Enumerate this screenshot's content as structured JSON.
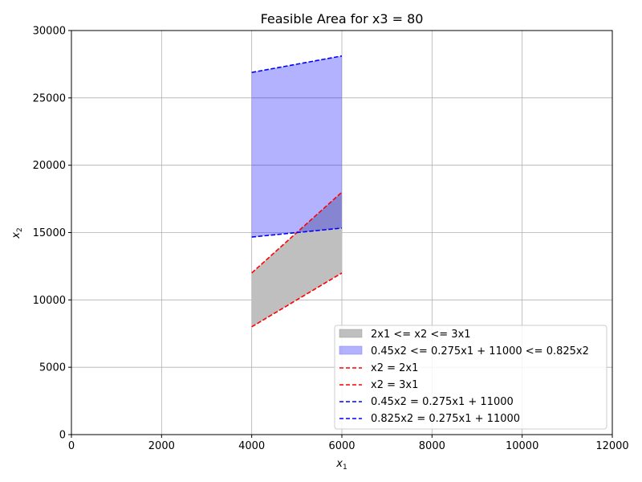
{
  "chart_data": {
    "type": "area",
    "title": "Feasible Area for x3 = 80",
    "xlabel_main": "x",
    "xlabel_sub": "1",
    "ylabel_main": "x",
    "ylabel_sub": "2",
    "xlim": [
      0,
      12000
    ],
    "ylim": [
      0,
      30000
    ],
    "xticks": [
      0,
      2000,
      4000,
      6000,
      8000,
      10000,
      12000
    ],
    "yticks": [
      0,
      5000,
      10000,
      15000,
      20000,
      25000,
      30000
    ],
    "grid": true,
    "legend_position": "lower-right",
    "fills": [
      {
        "name": "2x1 <= x2 <= 3x1",
        "color": "#bfbfbf",
        "opacity": 1,
        "x": [
          4000,
          6000
        ],
        "lower": [
          8000,
          12000
        ],
        "upper": [
          12000,
          18000
        ]
      },
      {
        "name": "0.45x2 <= 0.275x1 + 11000 <= 0.825x2",
        "color": "#0000ff",
        "opacity": 0.3,
        "x": [
          4000,
          6000
        ],
        "lower": [
          14667,
          15333
        ],
        "upper": [
          26889,
          28111
        ]
      }
    ],
    "lines": [
      {
        "name": "x2 = 2x1",
        "color": "#ff0000",
        "dash": true,
        "x": [
          4000,
          6000
        ],
        "y": [
          8000,
          12000
        ]
      },
      {
        "name": "x2 = 3x1",
        "color": "#ff0000",
        "dash": true,
        "x": [
          4000,
          6000
        ],
        "y": [
          12000,
          18000
        ]
      },
      {
        "name": "0.45x2 = 0.275x1 + 11000",
        "color": "#0000ff",
        "dash": true,
        "x": [
          4000,
          6000
        ],
        "y": [
          26889,
          28111
        ]
      },
      {
        "name": "0.825x2 = 0.275x1 + 11000",
        "color": "#0000ff",
        "dash": true,
        "x": [
          4000,
          6000
        ],
        "y": [
          14667,
          15333
        ]
      }
    ]
  }
}
